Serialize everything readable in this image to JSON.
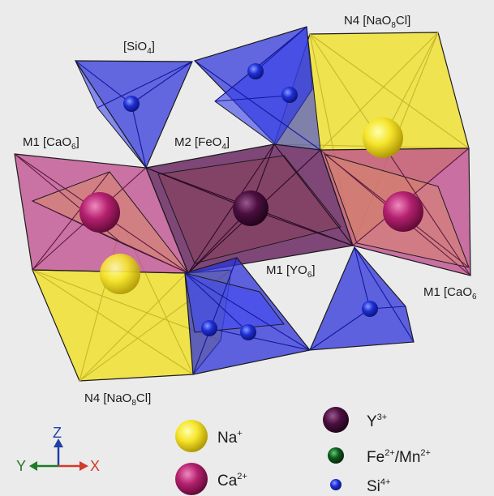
{
  "labels": {
    "sio4": {
      "text": "[SiO",
      "sub": "4",
      "end": "]"
    },
    "n4_top": {
      "text": "N4 [NaO",
      "sub": "8",
      "end": "Cl]"
    },
    "m1_left": {
      "text": "M1 [CaO",
      "sub": "6",
      "end": "]"
    },
    "m2": {
      "text": "M2 [FeO",
      "sub": "4",
      "end": "]"
    },
    "m1_center": {
      "text": "M1 [YO",
      "sub": "6",
      "end": "]"
    },
    "m1_right": {
      "text": "M1 [CaO",
      "sub": "6",
      "end": ""
    },
    "n4_bottom": {
      "text": "N4 [NaO",
      "sub": "8",
      "end": "Cl]"
    }
  },
  "axes": {
    "z": "Z",
    "y": "Y",
    "x": "X"
  },
  "legend": {
    "na": {
      "label": "Na",
      "sup": "+",
      "color": "#f4e323"
    },
    "ca": {
      "label": "Ca",
      "sup": "2+",
      "color": "#b0236d"
    },
    "y": {
      "label": "Y",
      "sup": "3+",
      "color": "#4a0f3c"
    },
    "fe": {
      "label": "Fe",
      "sup": "2+",
      "label2": "/Mn",
      "sup2": "2+",
      "color": "#0f5a1e"
    },
    "si": {
      "label": "Si",
      "sup": "4+",
      "color": "#1d2fd6"
    }
  },
  "colors": {
    "yellow": "#efe13a",
    "pink": "#c0508f",
    "purple": "#6b2a63",
    "blue": "#2d33d9",
    "axis_z": "#1f3fa5",
    "axis_y": "#1f7a2a",
    "axis_x": "#d23a2a"
  }
}
